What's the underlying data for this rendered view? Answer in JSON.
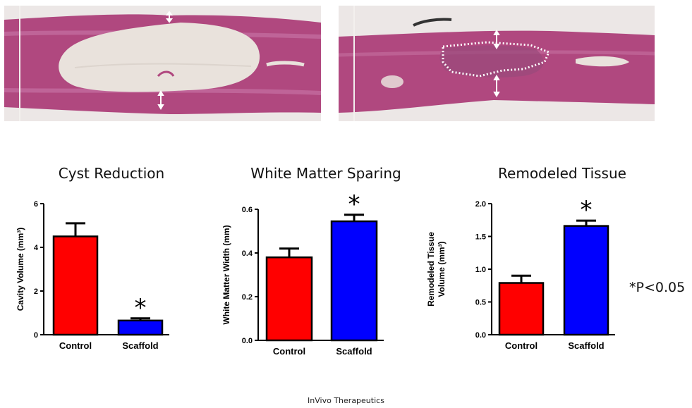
{
  "chart_data": [
    {
      "type": "bar",
      "title": "Cyst Reduction",
      "ylabel": "Cavity Volume (mm³)",
      "categories": [
        "Control",
        "Scaffold"
      ],
      "values": [
        4.5,
        0.65
      ],
      "errors": [
        0.6,
        0.1
      ],
      "significance": [
        "",
        "*"
      ],
      "ylim": [
        0,
        6
      ],
      "yticks": [
        "0",
        "2",
        "4",
        "6"
      ],
      "tick_values": [
        0,
        2,
        4,
        6
      ],
      "colors": [
        "#ff0000",
        "#0000ff"
      ]
    },
    {
      "type": "bar",
      "title": "White Matter Sparing",
      "ylabel": "White Matter Width (mm)",
      "categories": [
        "Control",
        "Scaffold"
      ],
      "values": [
        0.38,
        0.545
      ],
      "errors": [
        0.04,
        0.03
      ],
      "significance": [
        "",
        "*"
      ],
      "ylim": [
        0,
        0.6
      ],
      "yticks": [
        "0.0",
        "0.2",
        "0.4",
        "0.6"
      ],
      "tick_values": [
        0,
        0.2,
        0.4,
        0.6
      ],
      "colors": [
        "#ff0000",
        "#0000ff"
      ]
    },
    {
      "type": "bar",
      "title": "Remodeled Tissue",
      "ylabel": "Remodeled Tissue Volume (mm³)",
      "categories": [
        "Control",
        "Scaffold"
      ],
      "values": [
        0.79,
        1.66
      ],
      "errors": [
        0.11,
        0.08
      ],
      "significance": [
        "",
        "*"
      ],
      "ylim": [
        0,
        2.0
      ],
      "yticks": [
        "0.0",
        "0.5",
        "1.0",
        "1.5",
        "2.0"
      ],
      "tick_values": [
        0,
        0.5,
        1.0,
        1.5,
        2.0
      ],
      "colors": [
        "#ff0000",
        "#0000ff"
      ]
    }
  ],
  "significance_note": "*P<0.05",
  "credit": "InVivo Therapeutics",
  "histology": {
    "background_color": "#ece7e6",
    "tissue_color": "#b0487f",
    "tissue_highlight": "#c978a8",
    "cavity_color": "#e9e2dc",
    "marker_color": "#ffffff"
  }
}
